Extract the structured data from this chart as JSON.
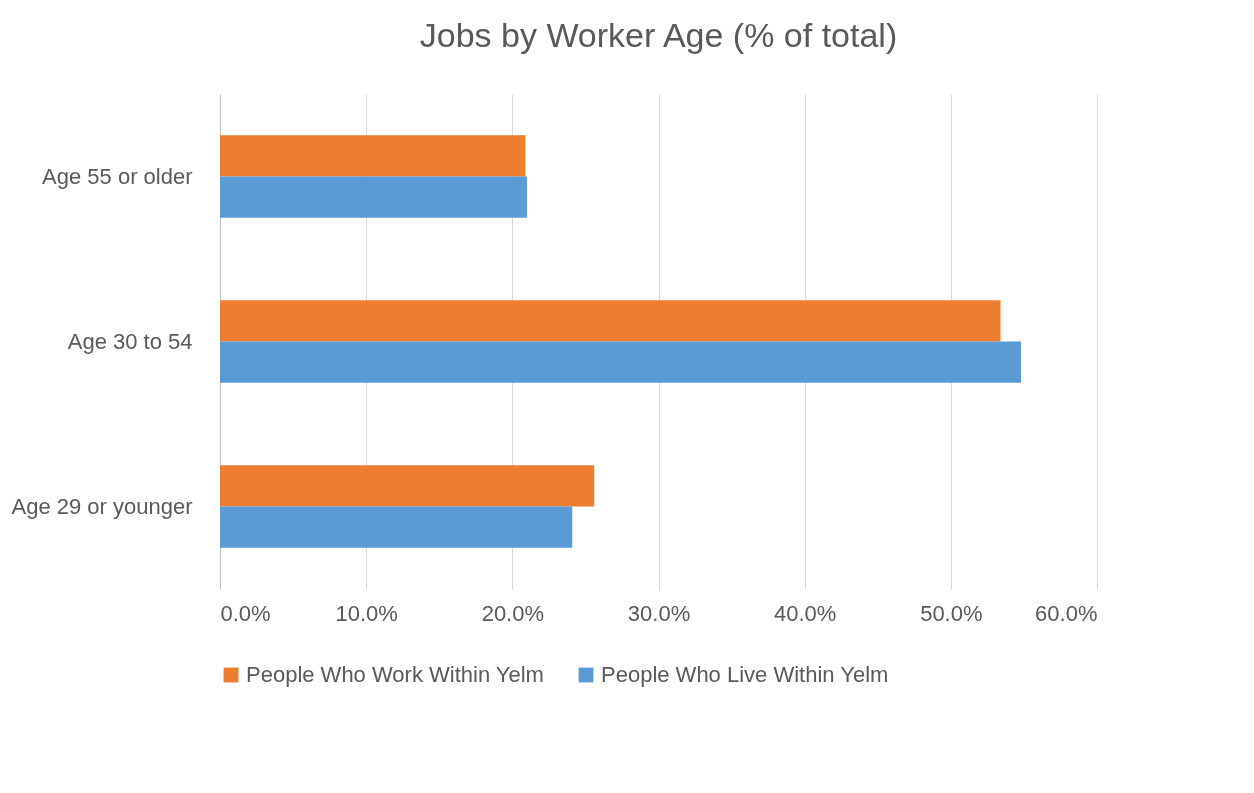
{
  "chart_data": {
    "type": "bar",
    "title": "Jobs by Worker Age (% of total)",
    "orientation": "horizontal",
    "categories": [
      "Age 55 or older",
      "Age 30 to 54",
      "Age 29 or younger"
    ],
    "series": [
      {
        "name": "People Who Work Within Yelm",
        "color": "#ed7d31",
        "values": [
          20.9,
          53.4,
          25.6
        ]
      },
      {
        "name": "People Who Live Within Yelm",
        "color": "#5b9bd5",
        "values": [
          21.0,
          54.8,
          24.1
        ]
      }
    ],
    "xlim": [
      0,
      60
    ],
    "xticks": [
      {
        "value": 0,
        "label": "0.0%"
      },
      {
        "value": 10,
        "label": "10.0%"
      },
      {
        "value": 20,
        "label": "20.0%"
      },
      {
        "value": 30,
        "label": "30.0%"
      },
      {
        "value": 40,
        "label": "40.0%"
      },
      {
        "value": 50,
        "label": "50.0%"
      },
      {
        "value": 60,
        "label": "60.0%"
      }
    ],
    "grid": "x",
    "legend": "bottom"
  }
}
